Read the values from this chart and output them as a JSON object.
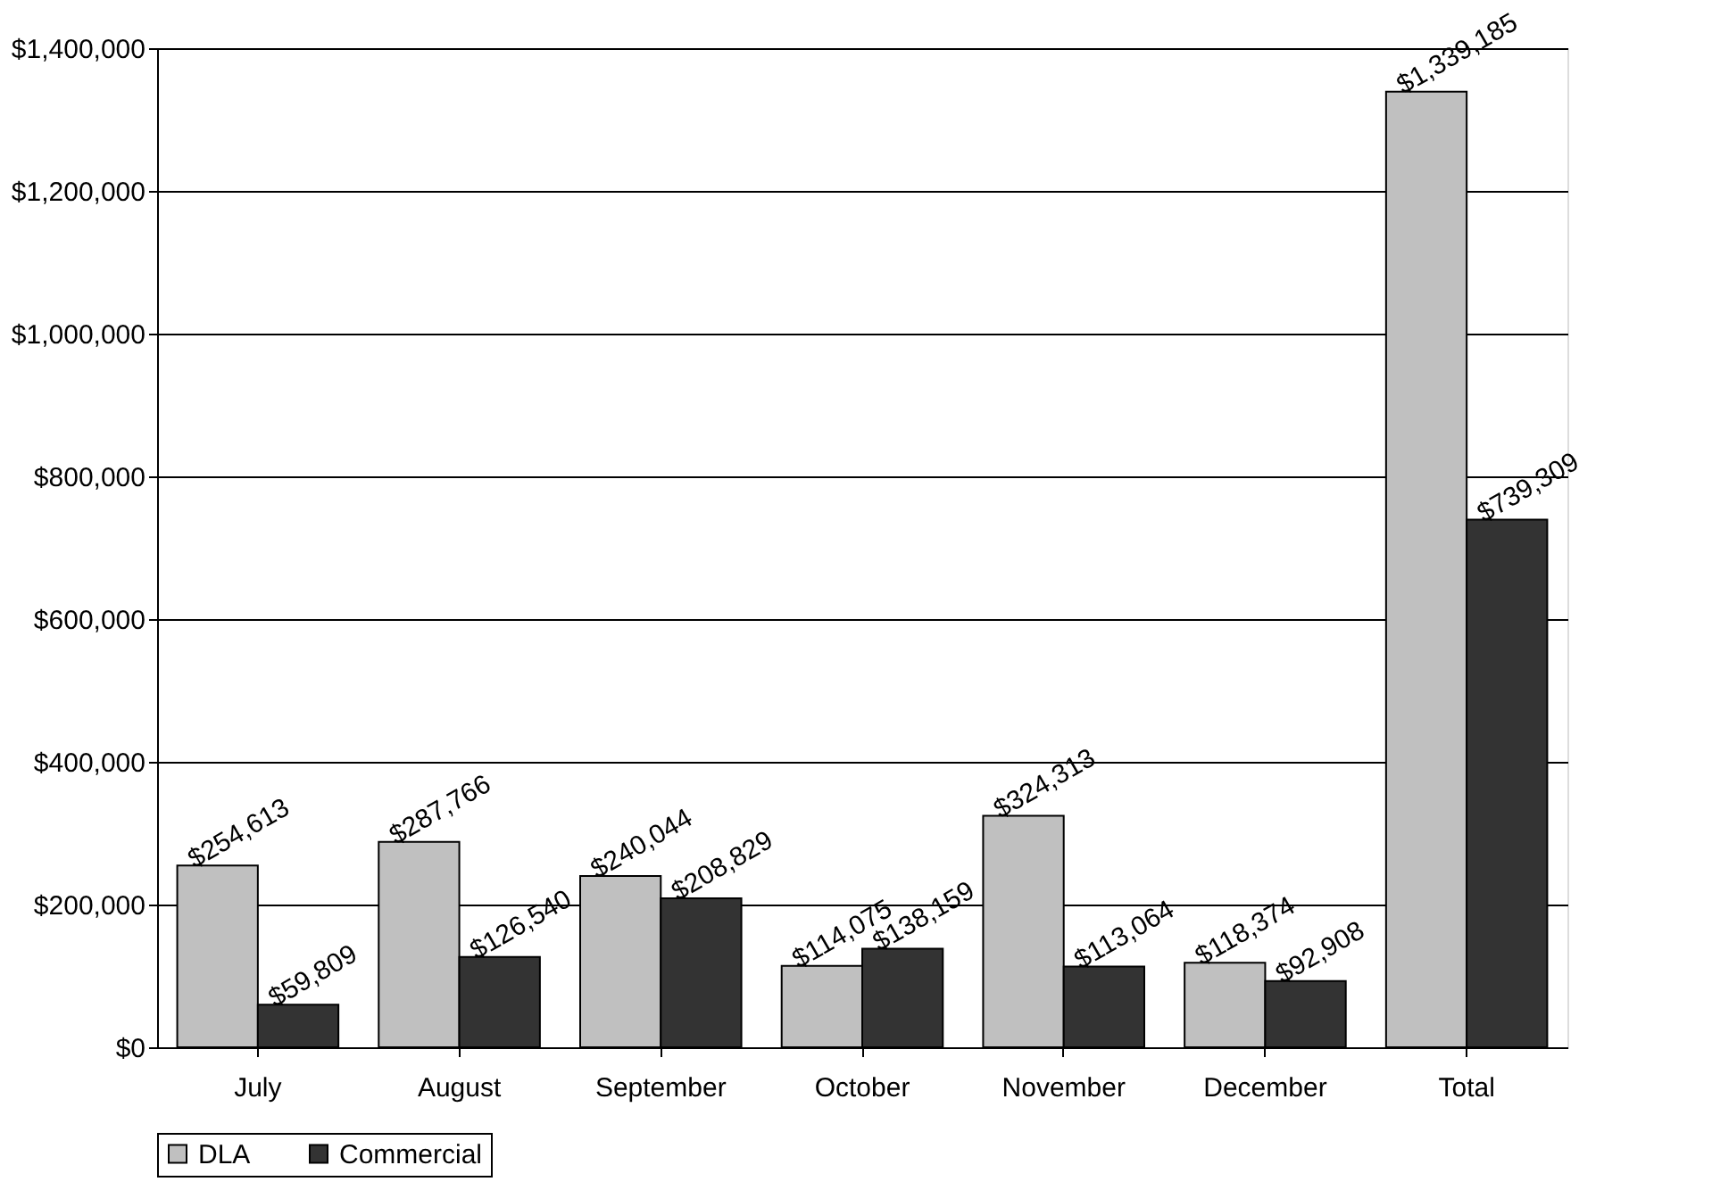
{
  "chart_data": {
    "type": "bar",
    "categories": [
      "July",
      "August",
      "September",
      "October",
      "November",
      "December",
      "Total"
    ],
    "series": [
      {
        "name": "DLA",
        "color": "#c0c0c0",
        "values": [
          254613,
          287766,
          240044,
          114075,
          324313,
          118374,
          1339185
        ],
        "value_labels": [
          "$254,613",
          "$287,766",
          "$240,044",
          "$114,075",
          "$324,313",
          "$118,374",
          "$1,339,185"
        ]
      },
      {
        "name": "Commercial",
        "color": "#333333",
        "values": [
          59809,
          126540,
          208829,
          138159,
          113064,
          92908,
          739309
        ],
        "value_labels": [
          "$59,809",
          "$126,540",
          "$208,829",
          "$138,159",
          "$113,064",
          "$92,908",
          "$739,309"
        ]
      }
    ],
    "ylim": [
      0,
      1400000
    ],
    "yticks": [
      {
        "value": 0,
        "label": "$0"
      },
      {
        "value": 200000,
        "label": "$200,000"
      },
      {
        "value": 400000,
        "label": "$400,000"
      },
      {
        "value": 600000,
        "label": "$600,000"
      },
      {
        "value": 800000,
        "label": "$800,000"
      },
      {
        "value": 1000000,
        "label": "$1,000,000"
      },
      {
        "value": 1200000,
        "label": "$1,200,000"
      },
      {
        "value": 1400000,
        "label": "$1,400,000"
      }
    ],
    "grid": "y",
    "legend": "bottom"
  }
}
